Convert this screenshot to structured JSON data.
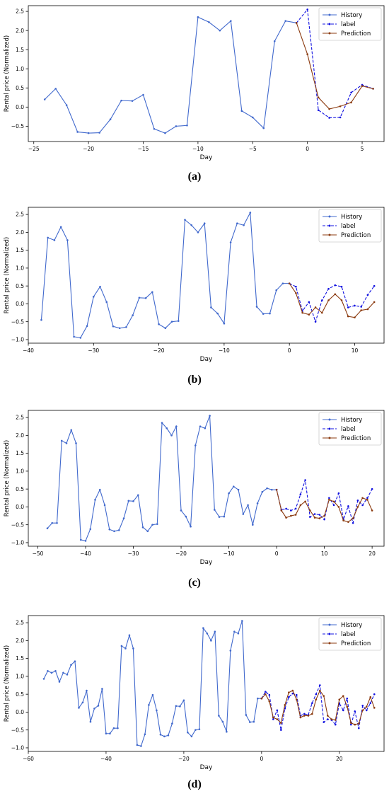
{
  "y_axis_label": "Rental price (Normalized)",
  "x_axis_label": "Day",
  "legend": [
    "History",
    "label",
    "Prediction"
  ],
  "colors": {
    "history": "#4169cd",
    "label": "#1010e0",
    "prediction": "#8b3a0f",
    "axis": "#000000"
  },
  "captions": [
    "(a)",
    "(b)",
    "(c)",
    "(d)"
  ],
  "chart_data": [
    {
      "type": "line",
      "xlabel": "Day",
      "ylabel": "Rental price (Normalized)",
      "xlim": [
        -25.5,
        7
      ],
      "ylim": [
        -0.9,
        2.65
      ],
      "xticks": [
        -25,
        -20,
        -15,
        -10,
        -5,
        0,
        5
      ],
      "yticks": [
        -0.5,
        0.0,
        0.5,
        1.0,
        1.5,
        2.0,
        2.5
      ],
      "legend_position": "top-right",
      "series": [
        {
          "name": "History",
          "x": [
            -24,
            -23,
            -22,
            -21,
            -20,
            -19,
            -18,
            -17,
            -16,
            -15,
            -14,
            -13,
            -12,
            -11,
            -10,
            -9,
            -8,
            -7,
            -6,
            -5,
            -4,
            -3,
            -2,
            -1
          ],
          "y": [
            0.2,
            0.48,
            0.05,
            -0.65,
            -0.68,
            -0.67,
            -0.32,
            0.17,
            0.16,
            0.32,
            -0.57,
            -0.68,
            -0.5,
            -0.48,
            2.35,
            2.22,
            2.0,
            2.25,
            -0.1,
            -0.27,
            -0.55,
            1.72,
            2.25,
            2.2
          ]
        },
        {
          "name": "label",
          "x": [
            -1,
            0,
            1,
            2,
            3,
            4,
            5,
            6
          ],
          "y": [
            2.2,
            2.55,
            -0.08,
            -0.28,
            -0.27,
            0.38,
            0.58,
            0.48
          ]
        },
        {
          "name": "Prediction",
          "x": [
            -1,
            0,
            1,
            2,
            3,
            4,
            5,
            6
          ],
          "y": [
            2.2,
            1.38,
            0.25,
            -0.05,
            0.02,
            0.12,
            0.55,
            0.48
          ]
        }
      ]
    },
    {
      "type": "line",
      "xlabel": "Day",
      "ylabel": "Rental price (Normalized)",
      "xlim": [
        -40,
        14.5
      ],
      "ylim": [
        -1.1,
        2.7
      ],
      "xticks": [
        -40,
        -30,
        -20,
        -10,
        0,
        10
      ],
      "yticks": [
        -1.0,
        -0.5,
        0.0,
        0.5,
        1.0,
        1.5,
        2.0,
        2.5
      ],
      "legend_position": "top-right",
      "series": [
        {
          "name": "History",
          "x": [
            -38,
            -37,
            -36,
            -35,
            -34,
            -33,
            -32,
            -31,
            -30,
            -29,
            -28,
            -27,
            -26,
            -25,
            -24,
            -23,
            -22,
            -21,
            -20,
            -19,
            -18,
            -17,
            -16,
            -15,
            -14,
            -13,
            -12,
            -11,
            -10,
            -9,
            -8,
            -7,
            -6,
            -5,
            -4,
            -3,
            -2,
            -1,
            0
          ],
          "y": [
            -0.45,
            1.85,
            1.78,
            2.15,
            1.78,
            -0.92,
            -0.95,
            -0.62,
            0.2,
            0.48,
            0.05,
            -0.63,
            -0.68,
            -0.65,
            -0.32,
            0.17,
            0.16,
            0.33,
            -0.57,
            -0.68,
            -0.5,
            -0.48,
            2.35,
            2.2,
            2.0,
            2.25,
            -0.1,
            -0.27,
            -0.55,
            1.72,
            2.25,
            2.2,
            2.55,
            -0.08,
            -0.28,
            -0.27,
            0.38,
            0.57,
            0.57
          ]
        },
        {
          "name": "label",
          "x": [
            0,
            1,
            2,
            3,
            4,
            5,
            6,
            7,
            8,
            9,
            10,
            11,
            12,
            13
          ],
          "y": [
            0.57,
            0.48,
            -0.2,
            0.05,
            -0.5,
            0.1,
            0.42,
            0.52,
            0.48,
            -0.1,
            -0.05,
            -0.08,
            0.25,
            0.5
          ]
        },
        {
          "name": "Prediction",
          "x": [
            0,
            1,
            2,
            3,
            4,
            5,
            6,
            7,
            8,
            9,
            10,
            11,
            12,
            13
          ],
          "y": [
            0.57,
            0.3,
            -0.25,
            -0.3,
            -0.1,
            -0.25,
            0.1,
            0.27,
            0.1,
            -0.35,
            -0.38,
            -0.18,
            -0.15,
            0.05
          ]
        }
      ]
    },
    {
      "type": "line",
      "xlabel": "Day",
      "ylabel": "Rental price (Normalized)",
      "xlim": [
        -52,
        22.5
      ],
      "ylim": [
        -1.1,
        2.7
      ],
      "xticks": [
        -50,
        -40,
        -30,
        -20,
        -10,
        0,
        10,
        20
      ],
      "yticks": [
        -1.0,
        -0.5,
        0.0,
        0.5,
        1.0,
        1.5,
        2.0,
        2.5
      ],
      "legend_position": "top-right",
      "series": [
        {
          "name": "History",
          "x": [
            -48,
            -47,
            -46,
            -45,
            -44,
            -43,
            -42,
            -41,
            -40,
            -39,
            -38,
            -37,
            -36,
            -35,
            -34,
            -33,
            -32,
            -31,
            -30,
            -29,
            -28,
            -27,
            -26,
            -25,
            -24,
            -23,
            -22,
            -21,
            -20,
            -19,
            -18,
            -17,
            -16,
            -15,
            -14,
            -13,
            -12,
            -11,
            -10,
            -9,
            -8,
            -7,
            -6,
            -5,
            -4,
            -3,
            -2,
            -1,
            0
          ],
          "y": [
            -0.6,
            -0.45,
            -0.45,
            1.85,
            1.78,
            2.15,
            1.78,
            -0.92,
            -0.95,
            -0.62,
            0.2,
            0.48,
            0.05,
            -0.63,
            -0.68,
            -0.65,
            -0.32,
            0.17,
            0.16,
            0.33,
            -0.57,
            -0.68,
            -0.5,
            -0.48,
            2.35,
            2.2,
            2.0,
            2.25,
            -0.1,
            -0.27,
            -0.55,
            1.72,
            2.25,
            2.2,
            2.55,
            -0.08,
            -0.28,
            -0.27,
            0.38,
            0.57,
            0.48,
            -0.2,
            0.05,
            -0.5,
            0.1,
            0.42,
            0.52,
            0.48,
            0.48
          ]
        },
        {
          "name": "label",
          "x": [
            0,
            1,
            2,
            3,
            4,
            5,
            6,
            7,
            8,
            9,
            10,
            11,
            12,
            13,
            14,
            15,
            16,
            17,
            18,
            19,
            20
          ],
          "y": [
            0.48,
            -0.08,
            -0.05,
            -0.1,
            -0.05,
            0.35,
            0.75,
            -0.28,
            -0.2,
            -0.22,
            -0.35,
            0.25,
            0.05,
            0.38,
            -0.35,
            0.02,
            -0.45,
            0.18,
            0.05,
            0.25,
            0.5
          ]
        },
        {
          "name": "Prediction",
          "x": [
            0,
            1,
            2,
            3,
            4,
            5,
            6,
            7,
            8,
            9,
            10,
            11,
            12,
            13,
            14,
            15,
            16,
            17,
            18,
            19,
            20
          ],
          "y": [
            0.48,
            -0.1,
            -0.3,
            -0.25,
            -0.22,
            0.05,
            0.15,
            -0.1,
            -0.3,
            -0.32,
            -0.25,
            0.2,
            0.15,
            0.0,
            -0.38,
            -0.42,
            -0.32,
            0.0,
            0.25,
            0.2,
            -0.1
          ]
        }
      ]
    },
    {
      "type": "line",
      "xlabel": "Day",
      "ylabel": "Rental price (Normalized)",
      "xlim": [
        -60,
        31.5
      ],
      "ylim": [
        -1.1,
        2.7
      ],
      "xticks": [
        -60,
        -40,
        -20,
        0,
        20
      ],
      "yticks": [
        -1.0,
        -0.5,
        0.0,
        0.5,
        1.0,
        1.5,
        2.0,
        2.5
      ],
      "legend_position": "top-right",
      "series": [
        {
          "name": "History",
          "x": [
            -56,
            -55,
            -54,
            -53,
            -52,
            -51,
            -50,
            -49,
            -48,
            -47,
            -46,
            -45,
            -44,
            -43,
            -42,
            -41,
            -40,
            -39,
            -38,
            -37,
            -36,
            -35,
            -34,
            -33,
            -32,
            -31,
            -30,
            -29,
            -28,
            -27,
            -26,
            -25,
            -24,
            -23,
            -22,
            -21,
            -20,
            -19,
            -18,
            -17,
            -16,
            -15,
            -14,
            -13,
            -12,
            -11,
            -10,
            -9,
            -8,
            -7,
            -6,
            -5,
            -4,
            -3,
            -2,
            -1,
            0
          ],
          "y": [
            0.93,
            1.15,
            1.1,
            1.15,
            0.85,
            1.1,
            1.05,
            1.32,
            1.42,
            0.12,
            0.27,
            0.6,
            -0.27,
            0.1,
            0.18,
            0.65,
            -0.6,
            -0.6,
            -0.45,
            -0.45,
            1.85,
            1.78,
            2.15,
            1.78,
            -0.92,
            -0.95,
            -0.62,
            0.2,
            0.48,
            0.05,
            -0.63,
            -0.68,
            -0.65,
            -0.32,
            0.17,
            0.16,
            0.33,
            -0.57,
            -0.68,
            -0.5,
            -0.48,
            2.35,
            2.2,
            2.0,
            2.25,
            -0.1,
            -0.27,
            -0.55,
            1.72,
            2.25,
            2.2,
            2.55,
            -0.08,
            -0.28,
            -0.27,
            0.38,
            0.38
          ]
        },
        {
          "name": "label",
          "x": [
            0,
            1,
            2,
            3,
            4,
            5,
            6,
            7,
            8,
            9,
            10,
            11,
            12,
            13,
            14,
            15,
            16,
            17,
            18,
            19,
            20,
            21,
            22,
            23,
            24,
            25,
            26,
            27,
            28,
            29
          ],
          "y": [
            0.38,
            0.57,
            0.48,
            -0.2,
            0.05,
            -0.5,
            0.1,
            0.42,
            0.52,
            0.48,
            -0.1,
            -0.05,
            -0.08,
            0.25,
            0.5,
            0.75,
            -0.28,
            -0.2,
            -0.22,
            -0.35,
            0.25,
            0.05,
            0.38,
            -0.35,
            0.02,
            -0.45,
            0.18,
            0.05,
            0.25,
            0.5
          ]
        },
        {
          "name": "Prediction",
          "x": [
            0,
            1,
            2,
            3,
            4,
            5,
            6,
            7,
            8,
            9,
            10,
            11,
            12,
            13,
            14,
            15,
            16,
            17,
            18,
            19,
            20,
            21,
            22,
            23,
            24,
            25,
            26,
            27,
            28,
            29
          ],
          "y": [
            0.38,
            0.5,
            0.3,
            -0.15,
            -0.2,
            -0.3,
            0.2,
            0.55,
            0.6,
            0.35,
            -0.15,
            -0.1,
            -0.1,
            -0.05,
            0.35,
            0.6,
            0.45,
            -0.1,
            -0.2,
            -0.22,
            0.35,
            0.45,
            0.15,
            -0.3,
            -0.35,
            -0.32,
            0.05,
            0.15,
            0.42,
            0.12
          ]
        }
      ]
    }
  ]
}
